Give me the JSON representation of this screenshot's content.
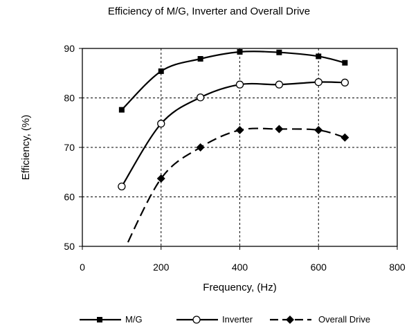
{
  "chart_data": {
    "type": "line",
    "title": "Efficiency of M/G, Inverter and Overall Drive",
    "xlabel": "Frequency, (Hz)",
    "ylabel": "Efficiency, (%)",
    "xlim": [
      0,
      800
    ],
    "ylim": [
      50,
      90
    ],
    "xticks": [
      0,
      200,
      400,
      600,
      800
    ],
    "yticks": [
      50,
      60,
      70,
      80,
      90
    ],
    "grid": true,
    "legend_position": "bottom",
    "series": [
      {
        "name": "M/G",
        "marker": "square",
        "line": "solid",
        "x": [
          100,
          200,
          300,
          400,
          500,
          600,
          667
        ],
        "y": [
          77.6,
          85.4,
          87.9,
          89.3,
          89.2,
          88.4,
          87.1
        ]
      },
      {
        "name": "Inverter",
        "marker": "circle",
        "line": "solid",
        "x": [
          100,
          200,
          300,
          400,
          500,
          600,
          667
        ],
        "y": [
          62.1,
          74.8,
          80.1,
          82.7,
          82.7,
          83.2,
          83.1
        ]
      },
      {
        "name": "Overall Drive",
        "marker": "diamond",
        "line": "dashed",
        "x": [
          100,
          200,
          300,
          400,
          500,
          600,
          667
        ],
        "y": [
          48.2,
          63.7,
          70.0,
          73.5,
          73.7,
          73.5,
          72.0
        ]
      }
    ]
  }
}
